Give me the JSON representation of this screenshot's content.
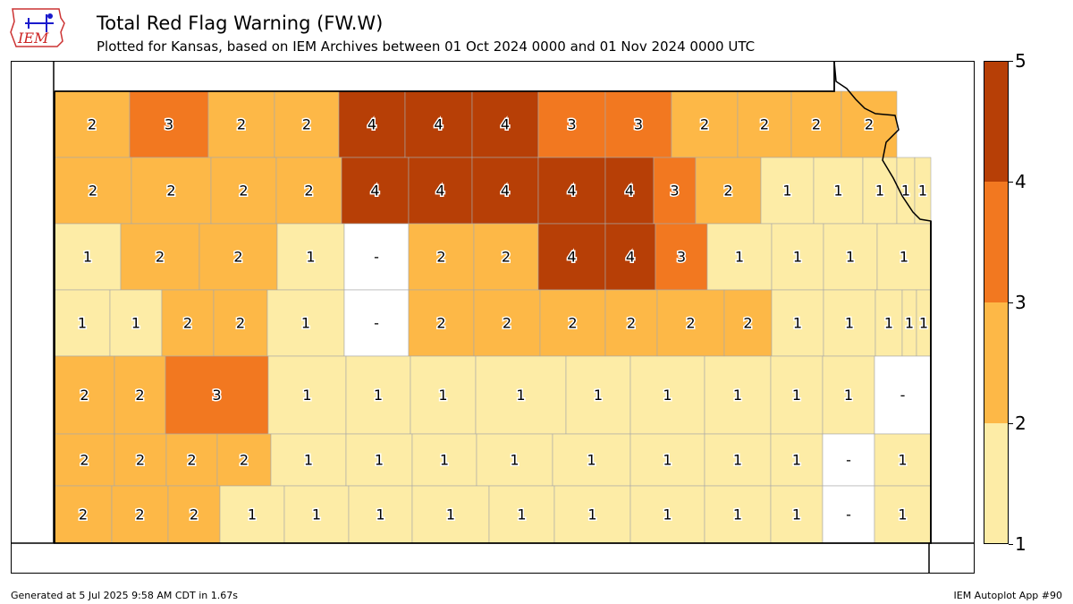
{
  "header": {
    "logo_text": "IEM",
    "title": "Total Red Flag Warning (FW.W)",
    "subtitle": "Plotted for Kansas, based on IEM Archives  between 01 Oct 2024 0000 and 01 Nov 2024 0000 UTC"
  },
  "legend": {
    "ticks": [
      "1",
      "2",
      "3",
      "4",
      "5"
    ],
    "colors": [
      "#fdeca6",
      "#fdb847",
      "#f27820",
      "#b73f06"
    ],
    "no_data_color": "#ffffff"
  },
  "map_data": {
    "counties": [
      {
        "row": 0,
        "col": 0,
        "value": "2"
      },
      {
        "row": 0,
        "col": 1,
        "value": "3"
      },
      {
        "row": 0,
        "col": 2,
        "value": "2"
      },
      {
        "row": 0,
        "col": 3,
        "value": "2"
      },
      {
        "row": 0,
        "col": 4,
        "value": "4"
      },
      {
        "row": 0,
        "col": 5,
        "value": "4"
      },
      {
        "row": 0,
        "col": 6,
        "value": "4"
      },
      {
        "row": 0,
        "col": 7,
        "value": "3"
      },
      {
        "row": 0,
        "col": 8,
        "value": "3"
      },
      {
        "row": 0,
        "col": 9,
        "value": "2"
      },
      {
        "row": 0,
        "col": 10,
        "value": "2"
      },
      {
        "row": 0,
        "col": 11,
        "value": "2"
      },
      {
        "row": 0,
        "col": 12,
        "value": "2"
      },
      {
        "row": 1,
        "col": 0,
        "value": "2"
      },
      {
        "row": 1,
        "col": 1,
        "value": "2"
      },
      {
        "row": 1,
        "col": 2,
        "value": "2"
      },
      {
        "row": 1,
        "col": 3,
        "value": "2"
      },
      {
        "row": 1,
        "col": 4,
        "value": "4"
      },
      {
        "row": 1,
        "col": 5,
        "value": "4"
      },
      {
        "row": 1,
        "col": 6,
        "value": "4"
      },
      {
        "row": 1,
        "col": 7,
        "value": "4"
      },
      {
        "row": 1,
        "col": 8,
        "value": "4"
      },
      {
        "row": 1,
        "col": 9,
        "value": "3"
      },
      {
        "row": 1,
        "col": 10,
        "value": "2"
      },
      {
        "row": 1,
        "col": 11,
        "value": "1"
      },
      {
        "row": 1,
        "col": 12,
        "value": "1"
      },
      {
        "row": 1,
        "col": 13,
        "value": "1"
      },
      {
        "row": 1,
        "col": 14,
        "value": "1"
      },
      {
        "row": 1,
        "col": 15,
        "value": "1"
      },
      {
        "row": 2,
        "col": 0,
        "value": "1"
      },
      {
        "row": 2,
        "col": 1,
        "value": "2"
      },
      {
        "row": 2,
        "col": 2,
        "value": "2"
      },
      {
        "row": 2,
        "col": 3,
        "value": "1"
      },
      {
        "row": 2,
        "col": 4,
        "value": "-"
      },
      {
        "row": 2,
        "col": 5,
        "value": "2"
      },
      {
        "row": 2,
        "col": 6,
        "value": "2"
      },
      {
        "row": 2,
        "col": 7,
        "value": "4"
      },
      {
        "row": 2,
        "col": 8,
        "value": "4"
      },
      {
        "row": 2,
        "col": 9,
        "value": "3"
      },
      {
        "row": 2,
        "col": 10,
        "value": "1"
      },
      {
        "row": 2,
        "col": 11,
        "value": "1"
      },
      {
        "row": 2,
        "col": 12,
        "value": "1"
      },
      {
        "row": 2,
        "col": 13,
        "value": "1"
      },
      {
        "row": 3,
        "col": 0,
        "value": "1"
      },
      {
        "row": 3,
        "col": 1,
        "value": "1"
      },
      {
        "row": 3,
        "col": 2,
        "value": "2"
      },
      {
        "row": 3,
        "col": 3,
        "value": "2"
      },
      {
        "row": 3,
        "col": 4,
        "value": "1"
      },
      {
        "row": 3,
        "col": 5,
        "value": "-"
      },
      {
        "row": 3,
        "col": 6,
        "value": "2"
      },
      {
        "row": 3,
        "col": 7,
        "value": "2"
      },
      {
        "row": 3,
        "col": 8,
        "value": "2"
      },
      {
        "row": 3,
        "col": 9,
        "value": "2"
      },
      {
        "row": 3,
        "col": 10,
        "value": "2"
      },
      {
        "row": 3,
        "col": 11,
        "value": "2"
      },
      {
        "row": 3,
        "col": 12,
        "value": "1"
      },
      {
        "row": 3,
        "col": 13,
        "value": "1"
      },
      {
        "row": 3,
        "col": 14,
        "value": "1"
      },
      {
        "row": 3,
        "col": 15,
        "value": "1"
      },
      {
        "row": 3,
        "col": 16,
        "value": "1"
      },
      {
        "row": 4,
        "col": 0,
        "value": "2"
      },
      {
        "row": 4,
        "col": 1,
        "value": "2"
      },
      {
        "row": 4,
        "col": 2,
        "value": "3"
      },
      {
        "row": 4,
        "col": 3,
        "value": "1"
      },
      {
        "row": 4,
        "col": 4,
        "value": "1"
      },
      {
        "row": 4,
        "col": 5,
        "value": "1"
      },
      {
        "row": 4,
        "col": 6,
        "value": "1"
      },
      {
        "row": 4,
        "col": 7,
        "value": "1"
      },
      {
        "row": 4,
        "col": 8,
        "value": "1"
      },
      {
        "row": 4,
        "col": 9,
        "value": "1"
      },
      {
        "row": 4,
        "col": 10,
        "value": "1"
      },
      {
        "row": 4,
        "col": 11,
        "value": "1"
      },
      {
        "row": 4,
        "col": 12,
        "value": "-"
      },
      {
        "row": 4,
        "col": 13,
        "value": "1"
      },
      {
        "row": 5,
        "col": 0,
        "value": "2"
      },
      {
        "row": 5,
        "col": 1,
        "value": "2"
      },
      {
        "row": 5,
        "col": 2,
        "value": "2"
      },
      {
        "row": 5,
        "col": 3,
        "value": "2"
      },
      {
        "row": 5,
        "col": 4,
        "value": "1"
      },
      {
        "row": 5,
        "col": 5,
        "value": "1"
      },
      {
        "row": 5,
        "col": 6,
        "value": "1"
      },
      {
        "row": 5,
        "col": 7,
        "value": "1"
      },
      {
        "row": 5,
        "col": 8,
        "value": "1"
      },
      {
        "row": 5,
        "col": 9,
        "value": "1"
      },
      {
        "row": 5,
        "col": 10,
        "value": "1"
      },
      {
        "row": 5,
        "col": 11,
        "value": "1"
      },
      {
        "row": 5,
        "col": 12,
        "value": "-"
      },
      {
        "row": 5,
        "col": 13,
        "value": "1"
      },
      {
        "row": 6,
        "col": 0,
        "value": "2"
      },
      {
        "row": 6,
        "col": 1,
        "value": "2"
      },
      {
        "row": 6,
        "col": 2,
        "value": "2"
      },
      {
        "row": 6,
        "col": 3,
        "value": "1"
      },
      {
        "row": 6,
        "col": 4,
        "value": "1"
      },
      {
        "row": 6,
        "col": 5,
        "value": "1"
      },
      {
        "row": 6,
        "col": 6,
        "value": "1"
      },
      {
        "row": 6,
        "col": 7,
        "value": "1"
      },
      {
        "row": 6,
        "col": 8,
        "value": "1"
      },
      {
        "row": 6,
        "col": 9,
        "value": "1"
      },
      {
        "row": 6,
        "col": 10,
        "value": "1"
      },
      {
        "row": 6,
        "col": 11,
        "value": "1"
      },
      {
        "row": 6,
        "col": 12,
        "value": "-"
      },
      {
        "row": 6,
        "col": 13,
        "value": "1"
      }
    ]
  },
  "footer": {
    "generated": "Generated at 5 Jul 2025 9:58 AM CDT in 1.67s",
    "app": "IEM Autoplot App #90"
  }
}
